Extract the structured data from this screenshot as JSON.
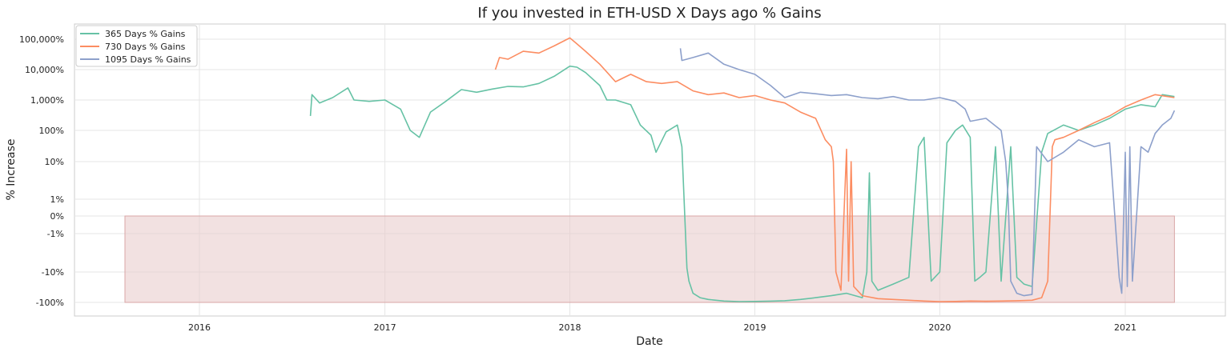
{
  "chart_data": {
    "type": "line",
    "title": "If you invested in ETH-USD X Days ago % Gains",
    "xlabel": "Date",
    "ylabel": "% Increase",
    "grid": true,
    "legend_position": "top-left",
    "yscale": "symlog",
    "x_ticks": [
      "2016",
      "2017",
      "2018",
      "2019",
      "2020",
      "2021"
    ],
    "y_ticks": [
      {
        "value": 100000,
        "label": "100,000%"
      },
      {
        "value": 10000,
        "label": "10,000%"
      },
      {
        "value": 1000,
        "label": "1,000%"
      },
      {
        "value": 100,
        "label": "100%"
      },
      {
        "value": 10,
        "label": "10%"
      },
      {
        "value": 1,
        "label": "1%"
      },
      {
        "value": 0,
        "label": "0%"
      },
      {
        "value": -1,
        "label": "-1%"
      },
      {
        "value": -10,
        "label": "-10%"
      },
      {
        "value": -100,
        "label": "-100%"
      }
    ],
    "loss_region": {
      "x_start": "2015-08-07",
      "x_end": "2021-04-08",
      "y_from": 0,
      "y_to": -100,
      "color": "#e8c8c8"
    },
    "series": [
      {
        "name": "365 Days % Gains",
        "color": "#66c2a5",
        "points": [
          [
            "2016-08-07",
            300
          ],
          [
            "2016-08-10",
            1500
          ],
          [
            "2016-08-25",
            800
          ],
          [
            "2016-09-20",
            1200
          ],
          [
            "2016-10-20",
            2500
          ],
          [
            "2016-11-01",
            1000
          ],
          [
            "2016-12-01",
            900
          ],
          [
            "2017-01-01",
            1000
          ],
          [
            "2017-02-01",
            500
          ],
          [
            "2017-02-20",
            100
          ],
          [
            "2017-03-10",
            60
          ],
          [
            "2017-04-01",
            400
          ],
          [
            "2017-05-01",
            900
          ],
          [
            "2017-06-01",
            2200
          ],
          [
            "2017-07-01",
            1800
          ],
          [
            "2017-08-01",
            2300
          ],
          [
            "2017-09-01",
            2800
          ],
          [
            "2017-10-01",
            2700
          ],
          [
            "2017-11-01",
            3500
          ],
          [
            "2017-12-01",
            6000
          ],
          [
            "2018-01-01",
            13000
          ],
          [
            "2018-01-15",
            12000
          ],
          [
            "2018-02-01",
            8000
          ],
          [
            "2018-03-01",
            3000
          ],
          [
            "2018-03-15",
            1000
          ],
          [
            "2018-04-01",
            1000
          ],
          [
            "2018-05-01",
            700
          ],
          [
            "2018-05-20",
            150
          ],
          [
            "2018-06-10",
            70
          ],
          [
            "2018-06-20",
            20
          ],
          [
            "2018-07-10",
            90
          ],
          [
            "2018-08-01",
            150
          ],
          [
            "2018-08-10",
            30
          ],
          [
            "2018-08-20",
            -8
          ],
          [
            "2018-08-24",
            -20
          ],
          [
            "2018-09-01",
            -50
          ],
          [
            "2018-09-15",
            -70
          ],
          [
            "2018-10-01",
            -80
          ],
          [
            "2018-11-01",
            -90
          ],
          [
            "2018-12-01",
            -94
          ],
          [
            "2019-01-01",
            -93
          ],
          [
            "2019-02-01",
            -91
          ],
          [
            "2019-03-01",
            -88
          ],
          [
            "2019-04-01",
            -80
          ],
          [
            "2019-05-01",
            -70
          ],
          [
            "2019-06-01",
            -60
          ],
          [
            "2019-07-01",
            -50
          ],
          [
            "2019-08-01",
            -70
          ],
          [
            "2019-08-10",
            -10
          ],
          [
            "2019-08-15",
            5
          ],
          [
            "2019-08-20",
            -20
          ],
          [
            "2019-09-01",
            -40
          ],
          [
            "2019-10-01",
            -25
          ],
          [
            "2019-11-01",
            -15
          ],
          [
            "2019-11-20",
            30
          ],
          [
            "2019-12-01",
            60
          ],
          [
            "2019-12-15",
            -20
          ],
          [
            "2020-01-01",
            -10
          ],
          [
            "2020-01-15",
            40
          ],
          [
            "2020-02-01",
            100
          ],
          [
            "2020-02-15",
            150
          ],
          [
            "2020-03-01",
            60
          ],
          [
            "2020-03-10",
            -20
          ],
          [
            "2020-03-20",
            -15
          ],
          [
            "2020-04-01",
            -10
          ],
          [
            "2020-04-20",
            30
          ],
          [
            "2020-05-01",
            -20
          ],
          [
            "2020-05-20",
            30
          ],
          [
            "2020-06-01",
            -15
          ],
          [
            "2020-06-15",
            -25
          ],
          [
            "2020-07-01",
            -30
          ],
          [
            "2020-07-20",
            20
          ],
          [
            "2020-08-01",
            80
          ],
          [
            "2020-09-01",
            150
          ],
          [
            "2020-10-01",
            100
          ],
          [
            "2020-11-01",
            150
          ],
          [
            "2020-12-01",
            250
          ],
          [
            "2021-01-01",
            500
          ],
          [
            "2021-02-01",
            700
          ],
          [
            "2021-03-01",
            600
          ],
          [
            "2021-03-15",
            1500
          ],
          [
            "2021-04-08",
            1300
          ]
        ]
      },
      {
        "name": "730 Days % Gains",
        "color": "#fc8d62",
        "points": [
          [
            "2017-08-07",
            10000
          ],
          [
            "2017-08-15",
            25000
          ],
          [
            "2017-09-01",
            22000
          ],
          [
            "2017-10-01",
            40000
          ],
          [
            "2017-11-01",
            35000
          ],
          [
            "2017-12-01",
            60000
          ],
          [
            "2018-01-01",
            110000
          ],
          [
            "2018-01-15",
            70000
          ],
          [
            "2018-02-01",
            40000
          ],
          [
            "2018-03-01",
            15000
          ],
          [
            "2018-04-01",
            4000
          ],
          [
            "2018-05-01",
            7000
          ],
          [
            "2018-06-01",
            4000
          ],
          [
            "2018-07-01",
            3500
          ],
          [
            "2018-08-01",
            4000
          ],
          [
            "2018-09-01",
            2000
          ],
          [
            "2018-10-01",
            1500
          ],
          [
            "2018-11-01",
            1700
          ],
          [
            "2018-12-01",
            1200
          ],
          [
            "2019-01-01",
            1400
          ],
          [
            "2019-02-01",
            1000
          ],
          [
            "2019-03-01",
            800
          ],
          [
            "2019-04-01",
            400
          ],
          [
            "2019-05-01",
            250
          ],
          [
            "2019-05-20",
            50
          ],
          [
            "2019-06-01",
            30
          ],
          [
            "2019-06-05",
            10
          ],
          [
            "2019-06-10",
            -10
          ],
          [
            "2019-06-20",
            -40
          ],
          [
            "2019-07-01",
            25
          ],
          [
            "2019-07-05",
            -20
          ],
          [
            "2019-07-10",
            10
          ],
          [
            "2019-07-15",
            -30
          ],
          [
            "2019-08-01",
            -60
          ],
          [
            "2019-09-01",
            -75
          ],
          [
            "2019-10-01",
            -80
          ],
          [
            "2019-11-01",
            -85
          ],
          [
            "2019-12-01",
            -90
          ],
          [
            "2020-01-01",
            -94
          ],
          [
            "2020-02-01",
            -93
          ],
          [
            "2020-03-01",
            -90
          ],
          [
            "2020-04-01",
            -92
          ],
          [
            "2020-05-01",
            -90
          ],
          [
            "2020-06-01",
            -88
          ],
          [
            "2020-07-01",
            -85
          ],
          [
            "2020-07-20",
            -70
          ],
          [
            "2020-08-01",
            -20
          ],
          [
            "2020-08-10",
            30
          ],
          [
            "2020-08-15",
            50
          ],
          [
            "2020-09-01",
            60
          ],
          [
            "2020-10-01",
            100
          ],
          [
            "2020-11-01",
            180
          ],
          [
            "2020-12-01",
            300
          ],
          [
            "2021-01-01",
            600
          ],
          [
            "2021-02-01",
            1000
          ],
          [
            "2021-03-01",
            1500
          ],
          [
            "2021-04-08",
            1200
          ]
        ]
      },
      {
        "name": "1095 Days % Gains",
        "color": "#8da0cb",
        "points": [
          [
            "2018-08-07",
            50000
          ],
          [
            "2018-08-10",
            20000
          ],
          [
            "2018-09-01",
            25000
          ],
          [
            "2018-10-01",
            35000
          ],
          [
            "2018-11-01",
            15000
          ],
          [
            "2018-12-01",
            10000
          ],
          [
            "2019-01-01",
            7000
          ],
          [
            "2019-02-01",
            3000
          ],
          [
            "2019-03-01",
            1200
          ],
          [
            "2019-04-01",
            1800
          ],
          [
            "2019-05-01",
            1600
          ],
          [
            "2019-06-01",
            1400
          ],
          [
            "2019-07-01",
            1500
          ],
          [
            "2019-08-01",
            1200
          ],
          [
            "2019-09-01",
            1100
          ],
          [
            "2019-10-01",
            1300
          ],
          [
            "2019-11-01",
            1000
          ],
          [
            "2019-12-01",
            1000
          ],
          [
            "2020-01-01",
            1200
          ],
          [
            "2020-02-01",
            900
          ],
          [
            "2020-02-20",
            500
          ],
          [
            "2020-03-01",
            200
          ],
          [
            "2020-04-01",
            250
          ],
          [
            "2020-05-01",
            100
          ],
          [
            "2020-05-10",
            10
          ],
          [
            "2020-05-15",
            1
          ],
          [
            "2020-05-20",
            -20
          ],
          [
            "2020-06-01",
            -50
          ],
          [
            "2020-06-15",
            -60
          ],
          [
            "2020-07-01",
            -55
          ],
          [
            "2020-07-10",
            30
          ],
          [
            "2020-08-01",
            10
          ],
          [
            "2020-09-01",
            20
          ],
          [
            "2020-10-01",
            50
          ],
          [
            "2020-11-01",
            30
          ],
          [
            "2020-12-01",
            40
          ],
          [
            "2020-12-20",
            -15
          ],
          [
            "2020-12-25",
            -50
          ],
          [
            "2021-01-01",
            20
          ],
          [
            "2021-01-05",
            -30
          ],
          [
            "2021-01-10",
            30
          ],
          [
            "2021-01-15",
            -20
          ],
          [
            "2021-02-01",
            30
          ],
          [
            "2021-02-15",
            20
          ],
          [
            "2021-03-01",
            80
          ],
          [
            "2021-03-15",
            150
          ],
          [
            "2021-04-01",
            250
          ],
          [
            "2021-04-08",
            450
          ]
        ]
      }
    ]
  }
}
